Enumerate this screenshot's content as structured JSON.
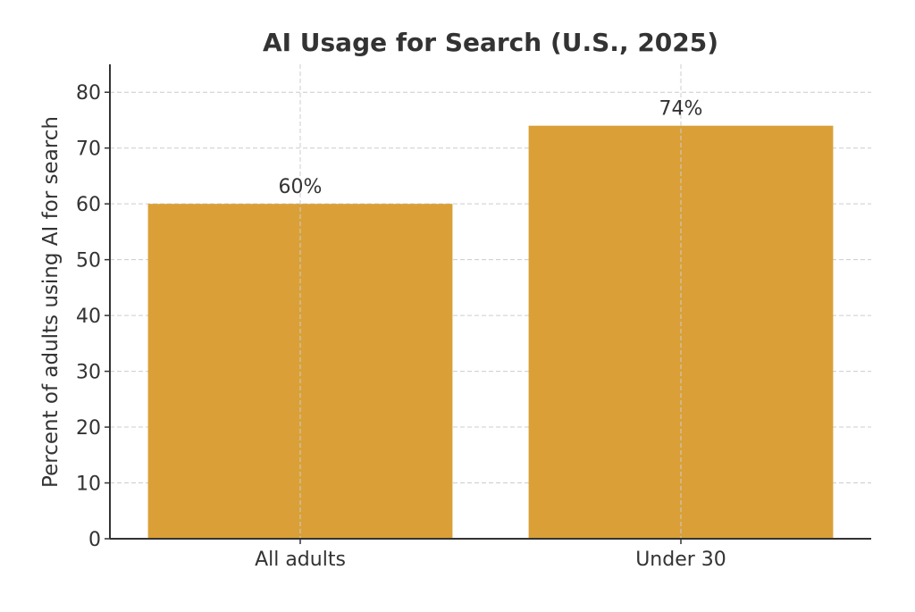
{
  "chart_data": {
    "type": "bar",
    "title": "AI Usage for Search (U.S., 2025)",
    "xlabel": "",
    "ylabel": "Percent of adults using AI for search",
    "categories": [
      "All adults",
      "Under 30"
    ],
    "values": [
      60,
      74
    ],
    "data_labels": [
      "60%",
      "74%"
    ],
    "ylim": [
      0,
      85
    ],
    "yticks": [
      0,
      10,
      20,
      30,
      40,
      50,
      60,
      70,
      80
    ],
    "grid": true,
    "bar_color": "#DAA037"
  }
}
